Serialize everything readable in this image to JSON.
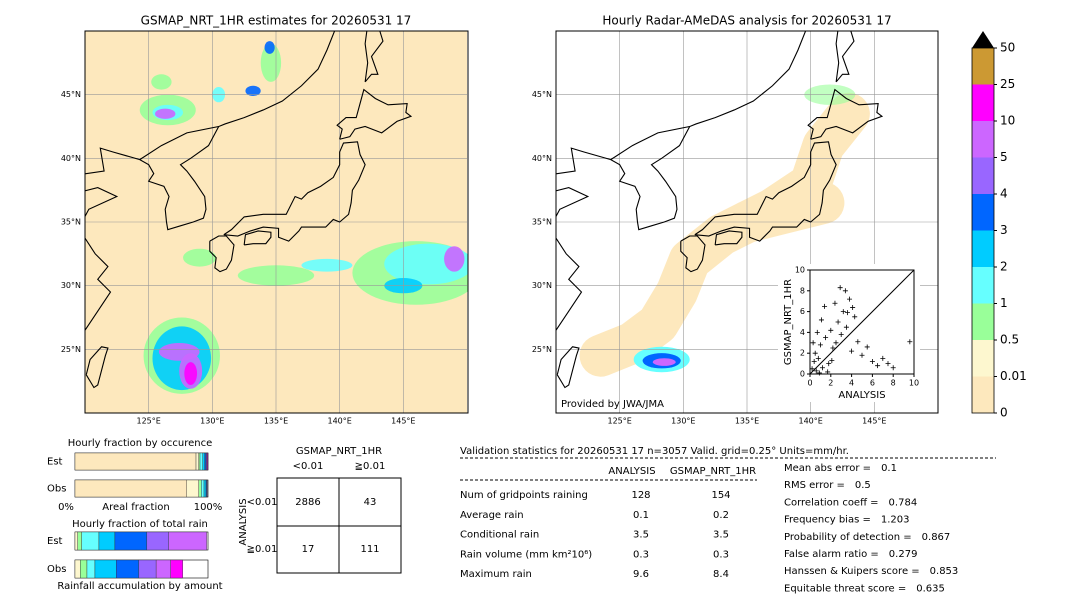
{
  "left_map": {
    "title": "GSMAP_NRT_1HR estimates for 20260531 17",
    "xlim": [
      120,
      150
    ],
    "ylim": [
      20,
      50
    ],
    "xticks": [
      {
        "value": 125,
        "label": "125°E"
      },
      {
        "value": 130,
        "label": "130°E"
      },
      {
        "value": 135,
        "label": "135°E"
      },
      {
        "value": 140,
        "label": "140°E"
      },
      {
        "value": 145,
        "label": "145°E"
      }
    ],
    "yticks": [
      {
        "value": 25,
        "label": "25°N"
      },
      {
        "value": 30,
        "label": "30°N"
      },
      {
        "value": 35,
        "label": "35°N"
      },
      {
        "value": 40,
        "label": "40°N"
      },
      {
        "value": 45,
        "label": "45°N"
      }
    ]
  },
  "right_map": {
    "title": "Hourly Radar-AMeDAS analysis for 20260531 17",
    "credit": "Provided by JWA/JMA",
    "xlim": [
      120,
      150
    ],
    "ylim": [
      20,
      50
    ],
    "xticks": [
      {
        "value": 125,
        "label": "125°E"
      },
      {
        "value": 130,
        "label": "130°E"
      },
      {
        "value": 135,
        "label": "135°E"
      },
      {
        "value": 140,
        "label": "140°E"
      },
      {
        "value": 145,
        "label": "145°E"
      }
    ],
    "yticks": [
      {
        "value": 25,
        "label": "25°N"
      },
      {
        "value": 30,
        "label": "30°N"
      },
      {
        "value": 35,
        "label": "35°N"
      },
      {
        "value": 40,
        "label": "40°N"
      },
      {
        "value": 45,
        "label": "45°N"
      }
    ]
  },
  "colorbar": {
    "levels": [
      0,
      0.01,
      0.5,
      1,
      2,
      3,
      4,
      5,
      10,
      25,
      50
    ],
    "colors": [
      "#fde8bd",
      "#fdf7cf",
      "#99ff99",
      "#66ffff",
      "#00ccff",
      "#0066ff",
      "#9966ff",
      "#cc66ff",
      "#ff00ff",
      "#cc9933"
    ],
    "over_color": "#000000"
  },
  "chart_data": {
    "type": "scatter",
    "xlabel": "ANALYSIS",
    "ylabel": "GSMAP_NRT_1HR",
    "xlim": [
      0,
      10
    ],
    "ylim": [
      0,
      10
    ],
    "xticks": [
      0,
      2,
      4,
      6,
      8,
      10
    ],
    "yticks": [
      0,
      2,
      4,
      6,
      8,
      10
    ],
    "x": [
      0.2,
      0.4,
      0.5,
      0.6,
      0.8,
      1.0,
      1.2,
      1.5,
      1.8,
      2.0,
      2.2,
      2.5,
      2.7,
      3.0,
      3.2,
      3.5,
      3.8,
      4.0,
      4.3,
      4.6,
      5.0,
      5.5,
      6.0,
      6.5,
      7.0,
      7.5,
      8.0,
      9.6,
      0.3,
      0.7,
      1.1,
      1.4,
      2.4,
      2.9,
      3.4,
      3.6,
      4.1,
      2.1,
      1.7,
      0.9
    ],
    "y": [
      0.5,
      1.2,
      2.0,
      0.3,
      1.5,
      2.8,
      0.6,
      3.5,
      1.0,
      4.2,
      2.5,
      3.0,
      5.0,
      3.8,
      6.0,
      4.5,
      7.2,
      2.2,
      5.5,
      3.1,
      1.8,
      2.6,
      1.2,
      0.8,
      1.5,
      1.0,
      0.6,
      3.1,
      3.0,
      4.0,
      5.2,
      6.5,
      6.8,
      8.3,
      8.0,
      5.9,
      6.4,
      1.3,
      0.2,
      0.1
    ]
  },
  "occurrence": {
    "title": "Hourly fraction by occurence",
    "rows": [
      "Est",
      "Obs"
    ],
    "axis_labels": [
      "0%",
      "Areal fraction",
      "100%"
    ],
    "fractions": [
      [
        0.91,
        0.02,
        0.01,
        0.02,
        0.015,
        0.01,
        0.005,
        0.005,
        0.005,
        0
      ],
      [
        0.84,
        0.09,
        0.02,
        0.02,
        0.015,
        0.005,
        0.005,
        0,
        0,
        0
      ]
    ]
  },
  "total_rain": {
    "title": "Hourly fraction of total rain",
    "rows": [
      "Est",
      "Obs"
    ],
    "footer": "Rainfall accumulation by amount",
    "fractions": [
      [
        0,
        0.02,
        0.03,
        0.13,
        0.12,
        0.24,
        0.165,
        0.285,
        0,
        0
      ],
      [
        0,
        0.04,
        0.05,
        0.06,
        0.16,
        0.17,
        0.13,
        0.11,
        0.09,
        0
      ]
    ]
  },
  "contingency": {
    "title": "GSMAP_NRT_1HR",
    "col_headers": [
      "<0.01",
      "≧0.01"
    ],
    "row_axis": "ANALYSIS",
    "row_headers": [
      "<0.01",
      "≧0.01"
    ],
    "cells": [
      [
        2886,
        43
      ],
      [
        17,
        111
      ]
    ]
  },
  "validation": {
    "header": "Validation statistics for 20260531 17  n=3057 Valid. grid=0.25° Units=mm/hr.",
    "columns": [
      "ANALYSIS",
      "GSMAP_NRT_1HR"
    ],
    "rows": [
      {
        "label": "Num of gridpoints raining",
        "values": [
          128,
          154
        ]
      },
      {
        "label": "Average rain",
        "values": [
          0.1,
          0.2
        ]
      },
      {
        "label": "Conditional rain",
        "values": [
          3.5,
          3.5
        ]
      },
      {
        "label": "Rain volume (mm km²10⁶)",
        "values": [
          0.3,
          0.3
        ]
      },
      {
        "label": "Maximum rain",
        "values": [
          9.6,
          8.4
        ]
      }
    ],
    "scores": [
      {
        "label": "Mean abs error =",
        "value": 0.1
      },
      {
        "label": "RMS error =",
        "value": 0.5
      },
      {
        "label": "Correlation coeff =",
        "value": 0.784
      },
      {
        "label": "Frequency bias =",
        "value": 1.203
      },
      {
        "label": "Probability of detection =",
        "value": 0.867
      },
      {
        "label": "False alarm ratio =",
        "value": 0.279
      },
      {
        "label": "Hanssen & Kuipers score =",
        "value": 0.853
      },
      {
        "label": "Equitable threat score =",
        "value": 0.635
      }
    ]
  }
}
